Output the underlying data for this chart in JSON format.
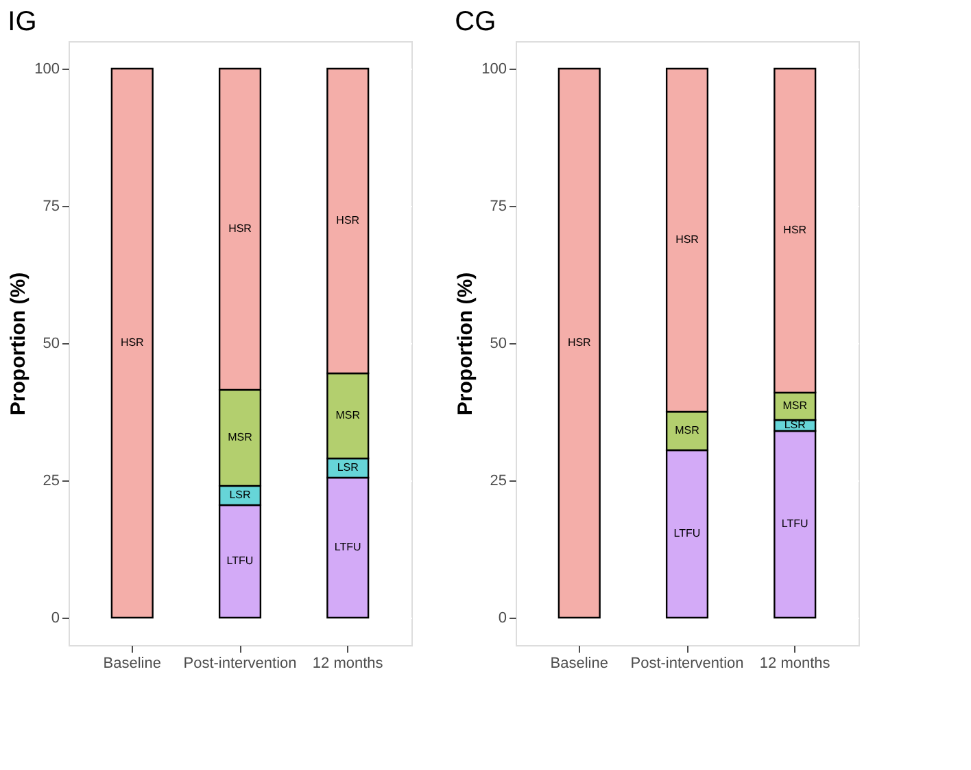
{
  "chart_data": [
    {
      "type": "bar",
      "title": "IG",
      "ylabel": "Proportion (%)",
      "categories": [
        "Baseline",
        "Post-intervention",
        "12 months"
      ],
      "stacked": true,
      "ylim": [
        -5,
        105
      ],
      "yticks": [
        0,
        25,
        50,
        75,
        100
      ],
      "grid": "y",
      "series": [
        {
          "name": "LTFU",
          "color": "#d3aaf7",
          "values": [
            0,
            20.5,
            25.5
          ]
        },
        {
          "name": "LSR",
          "color": "#66d5d8",
          "values": [
            0,
            3.5,
            3.5
          ]
        },
        {
          "name": "MSR",
          "color": "#b3cf6e",
          "values": [
            0,
            17.5,
            15.5
          ]
        },
        {
          "name": "HSR",
          "color": "#f4aea9",
          "values": [
            100,
            58.5,
            55.5
          ]
        }
      ]
    },
    {
      "type": "bar",
      "title": "CG",
      "ylabel": "Proportion (%)",
      "categories": [
        "Baseline",
        "Post-intervention",
        "12 months"
      ],
      "stacked": true,
      "ylim": [
        -5,
        105
      ],
      "yticks": [
        0,
        25,
        50,
        75,
        100
      ],
      "grid": "y",
      "series": [
        {
          "name": "LTFU",
          "color": "#d3aaf7",
          "values": [
            0,
            30.5,
            34
          ]
        },
        {
          "name": "LSR",
          "color": "#66d5d8",
          "values": [
            0,
            0,
            2
          ]
        },
        {
          "name": "MSR",
          "color": "#b3cf6e",
          "values": [
            0,
            7,
            5
          ]
        },
        {
          "name": "HSR",
          "color": "#f4aea9",
          "values": [
            100,
            62.5,
            59
          ]
        }
      ]
    }
  ]
}
